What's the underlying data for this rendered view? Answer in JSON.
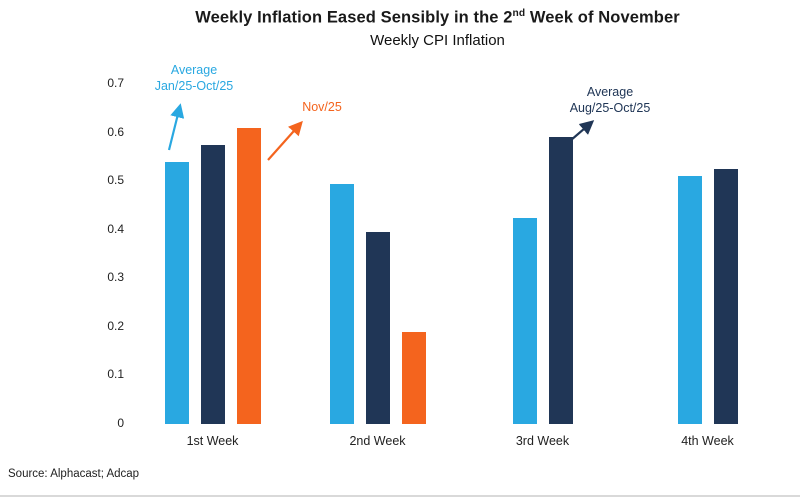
{
  "header": {
    "title_prefix": "Weekly Inflation Eased Sensibly in the 2",
    "title_sup": "nd",
    "title_suffix": " Week of November",
    "subtitle": "Weekly CPI Inflation"
  },
  "source": "Source: Alphacast; Adcap",
  "colors": {
    "light_blue": "#29A8E1",
    "navy": "#203656",
    "orange": "#F4641E"
  },
  "annotations": [
    {
      "id": "avg-jan-oct",
      "color_key": "light_blue",
      "lines": [
        "Average",
        "Jan/25-Oct/25"
      ]
    },
    {
      "id": "nov-25",
      "color_key": "orange",
      "lines": [
        "Nov/25",
        ""
      ]
    },
    {
      "id": "avg-aug-oct",
      "color_key": "navy",
      "lines": [
        "Average",
        "Aug/25-Oct/25"
      ]
    }
  ],
  "chart_data": {
    "type": "bar",
    "title": "Weekly Inflation Eased Sensibly in the 2nd Week of November",
    "subtitle": "Weekly CPI Inflation",
    "categories": [
      "1st Week",
      "2nd Week",
      "3rd Week",
      "4th Week"
    ],
    "series": [
      {
        "name": "Average Jan/25-Oct/25",
        "color_key": "light_blue",
        "values": [
          0.54,
          0.495,
          0.425,
          0.51
        ]
      },
      {
        "name": "Average Aug/25-Oct/25",
        "color_key": "navy",
        "values": [
          0.575,
          0.395,
          0.59,
          0.525
        ]
      },
      {
        "name": "Nov/25",
        "color_key": "orange",
        "values": [
          0.61,
          0.19,
          null,
          null
        ]
      }
    ],
    "xlabel": "",
    "ylabel": "",
    "ylim": [
      0,
      0.7
    ],
    "yticks": [
      0,
      0.1,
      0.2,
      0.3,
      0.4,
      0.5,
      0.6,
      0.7
    ],
    "grid": false,
    "legend_position": "none (series labeled via arrow annotations)"
  }
}
